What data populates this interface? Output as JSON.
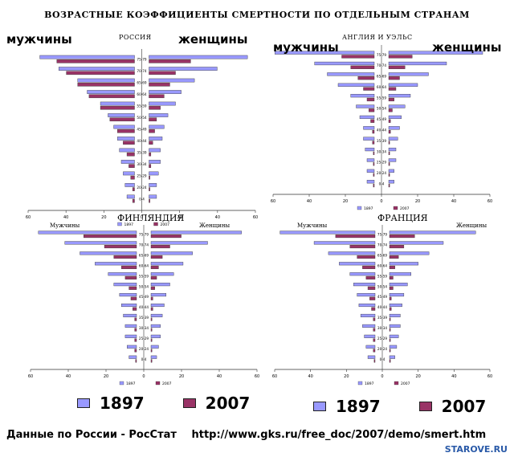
{
  "title": "ВОЗРАСТНЫЕ КОЭФФИЦИЕНТЫ СМЕРТНОСТИ ПО ОТДЕЛЬНЫМ СТРАНАМ",
  "legend": {
    "label_1897": "1897",
    "label_2007": "2007"
  },
  "colors": {
    "s1897": "#9999ff",
    "s2007": "#993366"
  },
  "footer": {
    "source": "Данные по России - РосСтат",
    "url": "http://www.gks.ru/free_doc/2007/demo/smert.htm"
  },
  "watermark": "STAROVE.RU",
  "chart_data": [
    {
      "type": "bar",
      "country": "РОССИЯ",
      "left_label": "мужчины",
      "right_label": "женщины",
      "categories": [
        "0-4",
        "20-24",
        "25-29",
        "30-34",
        "35-39",
        "40-44",
        "45-49",
        "50-54",
        "55-59",
        "60-64",
        "65-69",
        "70-74",
        "75-79"
      ],
      "xlim": [
        -60,
        60
      ],
      "xticks": [
        "60",
        "40",
        "20",
        "0",
        "20",
        "40",
        "60"
      ],
      "legend": [
        "1897",
        "2007"
      ],
      "series": [
        {
          "name": "1897",
          "male": [
            4,
            5,
            6,
            7,
            8,
            9,
            11,
            14,
            18,
            25,
            30,
            40,
            50
          ],
          "female": [
            4,
            4,
            5,
            6,
            6,
            7,
            8,
            10,
            14,
            17,
            24,
            36,
            52
          ]
        },
        {
          "name": "2007",
          "male": [
            1,
            1,
            2,
            3,
            4,
            6,
            9,
            13,
            18,
            24,
            30,
            36,
            41
          ],
          "female": [
            0.5,
            0.5,
            0.5,
            1,
            1,
            2,
            3,
            4,
            6,
            8,
            11,
            14,
            22
          ]
        }
      ]
    },
    {
      "type": "bar",
      "country": "АНГЛИЯ И УЭЛЬС",
      "left_label": "мужчины",
      "right_label": "женщины",
      "categories": [
        "0-4",
        "20-24",
        "25-29",
        "30-34",
        "35-39",
        "40-44",
        "45-49",
        "50-54",
        "55-59",
        "60-64",
        "65-69",
        "70-74",
        "75-79"
      ],
      "xlim": [
        -60,
        60
      ],
      "xticks": [
        "60",
        "40",
        "20",
        "0",
        "20",
        "40",
        "60"
      ],
      "legend": [
        "1897",
        "2007"
      ],
      "series": [
        {
          "name": "1897",
          "male": [
            4,
            4,
            4,
            5,
            6,
            6,
            8,
            10,
            13,
            20,
            26,
            33,
            55
          ],
          "female": [
            3,
            3,
            4,
            4,
            5,
            6,
            7,
            9,
            12,
            16,
            22,
            32,
            52
          ]
        },
        {
          "name": "2007",
          "male": [
            0.5,
            0.5,
            0.5,
            0.5,
            1,
            1,
            2,
            3,
            4,
            6,
            9,
            13,
            18
          ],
          "female": [
            0.5,
            0.5,
            0.5,
            0.5,
            0.5,
            1,
            1,
            2,
            3,
            4,
            6,
            9,
            13
          ]
        }
      ]
    },
    {
      "type": "bar",
      "country": "ФИНЛЯНДИЯ",
      "left_label": "Мужчины",
      "right_label": "Женщины",
      "categories": [
        "0-4",
        "20-24",
        "25-29",
        "30-34",
        "35-39",
        "40-44",
        "45-49",
        "50-54",
        "55-59",
        "60-64",
        "65-69",
        "70-74",
        "75-79"
      ],
      "xlim": [
        -60,
        60
      ],
      "xticks": [
        "60",
        "40",
        "20",
        "0",
        "20",
        "40",
        "60"
      ],
      "legend": [
        "1897",
        "2007"
      ],
      "series": [
        {
          "name": "1897",
          "male": [
            4,
            5,
            6,
            6,
            7,
            8,
            9,
            12,
            15,
            22,
            30,
            38,
            52
          ],
          "female": [
            3,
            4,
            5,
            5,
            6,
            7,
            8,
            10,
            12,
            17,
            22,
            30,
            48
          ]
        },
        {
          "name": "2007",
          "male": [
            0.5,
            1,
            1,
            1,
            1,
            2,
            3,
            4,
            6,
            8,
            12,
            17,
            28
          ],
          "female": [
            0.5,
            0.5,
            0.5,
            0.5,
            0.5,
            1,
            1,
            2,
            3,
            4,
            6,
            10,
            16
          ]
        }
      ]
    },
    {
      "type": "bar",
      "country": "ФРАНЦИЯ",
      "left_label": "Мужчины",
      "right_label": "Женщины",
      "categories": [
        "0-4",
        "20-24",
        "25-29",
        "30-34",
        "35-39",
        "40-44",
        "45-49",
        "50-54",
        "55-59",
        "60-64",
        "65-69",
        "70-74",
        "75-79"
      ],
      "xlim": [
        -60,
        60
      ],
      "xticks": [
        "60",
        "40",
        "20",
        "0",
        "20",
        "40",
        "60"
      ],
      "legend": [
        "1897",
        "2007"
      ],
      "series": [
        {
          "name": "1897",
          "male": [
            4,
            5,
            6,
            7,
            8,
            9,
            10,
            12,
            14,
            20,
            26,
            34,
            53
          ],
          "female": [
            3,
            4,
            5,
            6,
            6,
            7,
            8,
            10,
            12,
            16,
            22,
            30,
            48
          ]
        },
        {
          "name": "2007",
          "male": [
            0.5,
            1,
            1,
            1,
            1,
            2,
            3,
            4,
            5,
            7,
            10,
            14,
            22
          ],
          "female": [
            0.5,
            0.5,
            0.5,
            0.5,
            0.5,
            1,
            1,
            2,
            2,
            3,
            5,
            8,
            14
          ]
        }
      ]
    }
  ]
}
